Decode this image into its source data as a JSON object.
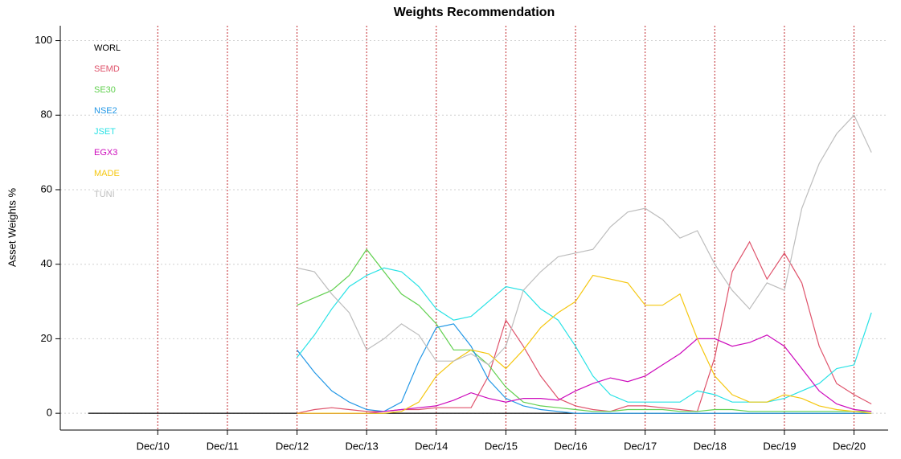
{
  "chart_data": {
    "type": "line",
    "title": "Weights Recommendation",
    "y_label": "Asset Weights %",
    "x": [
      2009.92,
      2010.17,
      2010.42,
      2010.67,
      2010.92,
      2011.17,
      2011.42,
      2011.67,
      2011.92,
      2012.17,
      2012.42,
      2012.67,
      2012.92,
      2013.17,
      2013.42,
      2013.67,
      2013.92,
      2014.17,
      2014.42,
      2014.67,
      2014.92,
      2015.17,
      2015.42,
      2015.67,
      2015.92,
      2016.17,
      2016.42,
      2016.67,
      2016.92,
      2017.17,
      2017.42,
      2017.67,
      2017.92,
      2018.17,
      2018.42,
      2018.67,
      2018.92,
      2019.17,
      2019.42,
      2019.67,
      2019.92,
      2020.17,
      2020.42,
      2020.67,
      2020.92,
      2021.17
    ],
    "series": [
      {
        "name": "WORL",
        "color": "#000000",
        "values": [
          0,
          0,
          0,
          0,
          0,
          0,
          0,
          0,
          0,
          0,
          0,
          0,
          0,
          0,
          0,
          0,
          0,
          0,
          0,
          0,
          0,
          0,
          0,
          0,
          0,
          0,
          0,
          0,
          0,
          0,
          0,
          0,
          0,
          0,
          0,
          0,
          0,
          0,
          0,
          0,
          0,
          0,
          0,
          0,
          0,
          0
        ]
      },
      {
        "name": "SEMD",
        "color": "#df536b",
        "values": [
          null,
          null,
          null,
          null,
          null,
          null,
          null,
          null,
          null,
          null,
          null,
          null,
          0,
          1,
          1.5,
          1,
          0.5,
          0.5,
          1,
          1,
          1.5,
          1.5,
          1.5,
          10,
          25,
          18,
          10,
          4,
          2,
          1,
          0.5,
          2,
          2,
          1.5,
          1,
          0.5,
          15,
          38,
          46,
          36,
          43,
          35,
          18,
          8,
          5,
          2.5
        ]
      },
      {
        "name": "SE30",
        "color": "#61d04f",
        "values": [
          null,
          null,
          null,
          null,
          null,
          null,
          null,
          null,
          null,
          null,
          null,
          null,
          29,
          31,
          33,
          37,
          44,
          38,
          32,
          29,
          24,
          17,
          17,
          13,
          7,
          3,
          2,
          1.5,
          1,
          0.5,
          0.5,
          1,
          1,
          1,
          0.5,
          0.5,
          1,
          1,
          0.5,
          0.5,
          0.5,
          0.5,
          0.5,
          0.5,
          0.5,
          0.5
        ]
      },
      {
        "name": "NSE2",
        "color": "#2297e6",
        "values": [
          null,
          null,
          null,
          null,
          null,
          null,
          null,
          null,
          null,
          null,
          null,
          null,
          17,
          11,
          6,
          3,
          1,
          0.5,
          3,
          14,
          23,
          24,
          18,
          9,
          4,
          2,
          1,
          0.5,
          0,
          0,
          0,
          0,
          0,
          0,
          0,
          0,
          0,
          0,
          0,
          0,
          0,
          0,
          0,
          0,
          0,
          0
        ]
      },
      {
        "name": "JSET",
        "color": "#28e2e5",
        "values": [
          null,
          null,
          null,
          null,
          null,
          null,
          null,
          null,
          null,
          null,
          null,
          null,
          15,
          21,
          28,
          34,
          37,
          39,
          38,
          34,
          28,
          25,
          26,
          30,
          34,
          33,
          28,
          25,
          18,
          10,
          5,
          3,
          3,
          3,
          3,
          6,
          5,
          3,
          3,
          3,
          4,
          6,
          8,
          12,
          13,
          27
        ]
      },
      {
        "name": "EGX3",
        "color": "#cd0bbc",
        "values": [
          null,
          null,
          null,
          null,
          null,
          null,
          null,
          null,
          null,
          null,
          null,
          null,
          0,
          0,
          0,
          0,
          0,
          0.5,
          1,
          1.5,
          2,
          3.5,
          5.5,
          4,
          3,
          4,
          4,
          3.5,
          6,
          8,
          9.5,
          8.5,
          10,
          13,
          16,
          20,
          20,
          18,
          19,
          21,
          18,
          12,
          6,
          2.5,
          1,
          0.5
        ]
      },
      {
        "name": "MADE",
        "color": "#f5c710",
        "values": [
          null,
          null,
          null,
          null,
          null,
          null,
          null,
          null,
          null,
          null,
          null,
          null,
          0,
          0,
          0,
          0,
          0,
          0,
          0.5,
          3,
          10,
          14,
          17,
          16,
          12,
          17,
          23,
          27,
          30,
          37,
          36,
          35,
          29,
          29,
          32,
          20,
          10,
          5,
          3,
          3,
          5,
          4,
          2,
          1,
          0.5,
          0
        ]
      },
      {
        "name": "TUNI",
        "color": "#bdbdbd",
        "values": [
          null,
          null,
          null,
          null,
          null,
          null,
          null,
          null,
          null,
          null,
          null,
          null,
          39,
          38,
          32,
          27,
          17,
          20,
          24,
          21,
          14,
          14,
          16,
          13,
          18,
          33,
          38,
          42,
          43,
          44,
          50,
          54,
          55,
          52,
          47,
          49,
          40,
          33,
          28,
          35,
          33,
          55,
          67,
          75,
          80,
          70
        ]
      }
    ],
    "xlim": [
      2009.52,
      2021.41
    ],
    "xticks": [
      {
        "value": 2010.92,
        "label": "Dec/10"
      },
      {
        "value": 2011.92,
        "label": "Dec/11"
      },
      {
        "value": 2012.92,
        "label": "Dec/12"
      },
      {
        "value": 2013.92,
        "label": "Dec/13"
      },
      {
        "value": 2014.92,
        "label": "Dec/14"
      },
      {
        "value": 2015.92,
        "label": "Dec/15"
      },
      {
        "value": 2016.92,
        "label": "Dec/16"
      },
      {
        "value": 2017.92,
        "label": "Dec/17"
      },
      {
        "value": 2018.92,
        "label": "Dec/18"
      },
      {
        "value": 2019.92,
        "label": "Dec/19"
      },
      {
        "value": 2020.92,
        "label": "Dec/20"
      }
    ],
    "ylim": [
      -4.5,
      104
    ],
    "yticks": [
      0,
      20,
      40,
      60,
      80,
      100
    ],
    "grid": true,
    "vline_color": "#c0282d",
    "legend": "top-left"
  }
}
